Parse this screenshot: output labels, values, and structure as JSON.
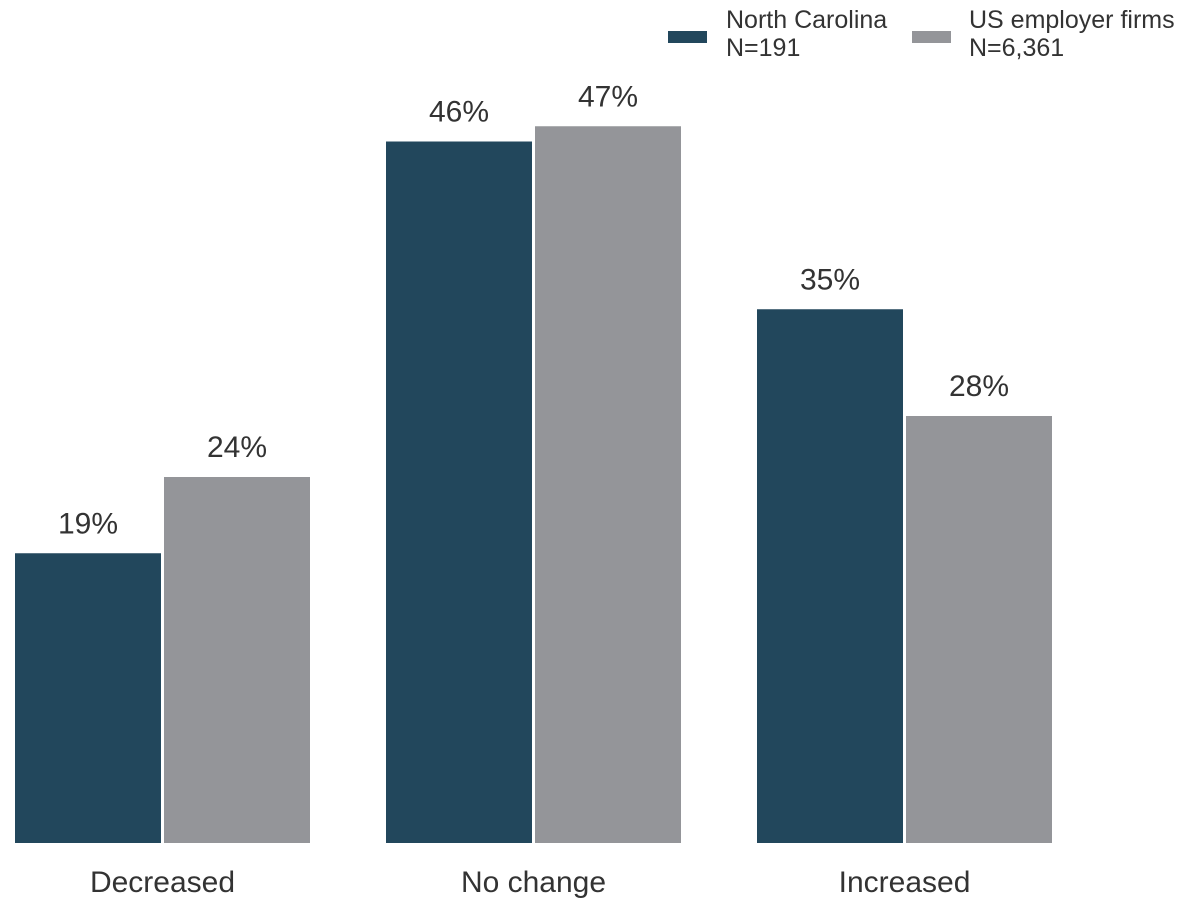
{
  "chart_data": {
    "type": "bar",
    "categories": [
      "Decreased",
      "No change",
      "Increased"
    ],
    "series": [
      {
        "name": "North Carolina",
        "sample": "N=191",
        "color": "#22475c",
        "values": [
          19,
          46,
          35
        ],
        "labels": [
          "19%",
          "46%",
          "35%"
        ]
      },
      {
        "name": "US employer firms",
        "sample": "N=6,361",
        "color": "#949599",
        "values": [
          24,
          47,
          28
        ],
        "labels": [
          "24%",
          "47%",
          "28%"
        ]
      }
    ],
    "ylim": [
      0,
      57
    ],
    "grid": false,
    "y_axis_visible": false,
    "legend_position": "top-right"
  }
}
